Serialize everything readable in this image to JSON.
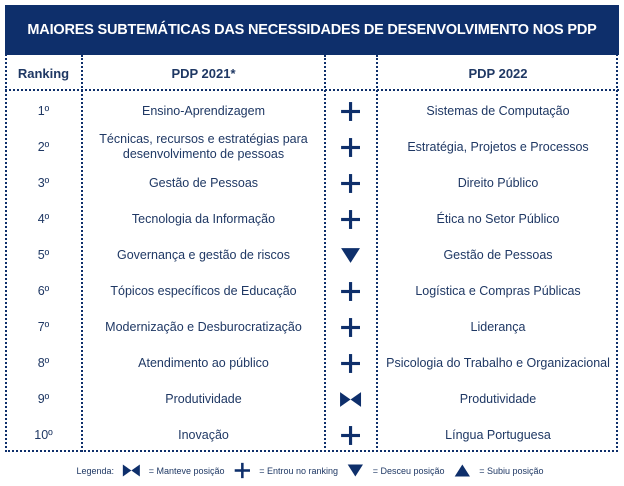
{
  "title": "MAIORES SUBTEMÁTICAS DAS NECESSIDADES DE DESENVOLVIMENTO NOS PDP",
  "headers": {
    "ranking": "Ranking",
    "pdp2021": "PDP 2021*",
    "pdp2022": "PDP 2022"
  },
  "colors": {
    "navy": "#0e2f6b",
    "text": "#1f3864"
  },
  "rows": [
    {
      "rank": "1º",
      "pdp2021": "Ensino-Aprendizagem",
      "change": "entered",
      "pdp2022": "Sistemas de Computação"
    },
    {
      "rank": "2º",
      "pdp2021": "Técnicas, recursos e estratégias para desenvolvimento de pessoas",
      "change": "entered",
      "pdp2022": "Estratégia, Projetos e Processos"
    },
    {
      "rank": "3º",
      "pdp2021": "Gestão de Pessoas",
      "change": "entered",
      "pdp2022": "Direito Público"
    },
    {
      "rank": "4º",
      "pdp2021": "Tecnologia da Informação",
      "change": "entered",
      "pdp2022": "Ética no Setor Público"
    },
    {
      "rank": "5º",
      "pdp2021": "Governança e gestão de riscos",
      "change": "down",
      "pdp2022": "Gestão de Pessoas"
    },
    {
      "rank": "6º",
      "pdp2021": "Tópicos específicos de Educação",
      "change": "entered",
      "pdp2022": "Logística e Compras Públicas"
    },
    {
      "rank": "7º",
      "pdp2021": "Modernização e Desburocratização",
      "change": "entered",
      "pdp2022": "Liderança"
    },
    {
      "rank": "8º",
      "pdp2021": "Atendimento ao público",
      "change": "entered",
      "pdp2022": "Psicologia do Trabalho e Organizacional"
    },
    {
      "rank": "9º",
      "pdp2021": "Produtividade",
      "change": "kept",
      "pdp2022": "Produtividade"
    },
    {
      "rank": "10º",
      "pdp2021": "Inovação",
      "change": "entered",
      "pdp2022": "Língua Portuguesa"
    }
  ],
  "legend": {
    "label": "Legenda:",
    "kept": "= Manteve posição",
    "entered": "= Entrou no ranking",
    "down": "= Desceu posição",
    "up": "= Subiu posição"
  }
}
